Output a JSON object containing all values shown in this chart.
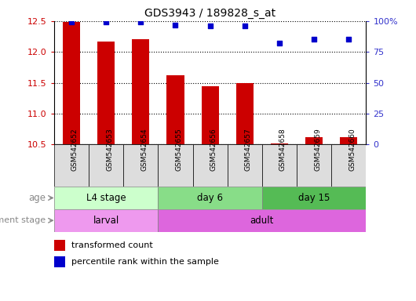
{
  "title": "GDS3943 / 189828_s_at",
  "samples": [
    "GSM542652",
    "GSM542653",
    "GSM542654",
    "GSM542655",
    "GSM542656",
    "GSM542657",
    "GSM542658",
    "GSM542659",
    "GSM542660"
  ],
  "transformed_count": [
    12.48,
    12.17,
    12.2,
    11.62,
    11.45,
    11.5,
    10.52,
    10.62,
    10.62
  ],
  "percentile_rank": [
    99,
    99,
    99,
    97,
    96,
    96,
    82,
    85,
    85
  ],
  "ylim_left": [
    10.5,
    12.5
  ],
  "ylim_right": [
    0,
    100
  ],
  "yticks_left": [
    10.5,
    11.0,
    11.5,
    12.0,
    12.5
  ],
  "yticks_right": [
    0,
    25,
    50,
    75,
    100
  ],
  "ytick_right_labels": [
    "0",
    "25",
    "50",
    "75",
    "100%"
  ],
  "age_groups": [
    {
      "label": "L4 stage",
      "start": 0,
      "end": 3,
      "color": "#ccffcc"
    },
    {
      "label": "day 6",
      "start": 3,
      "end": 6,
      "color": "#88dd88"
    },
    {
      "label": "day 15",
      "start": 6,
      "end": 9,
      "color": "#55bb55"
    }
  ],
  "dev_groups": [
    {
      "label": "larval",
      "start": 0,
      "end": 3,
      "color": "#ee99ee"
    },
    {
      "label": "adult",
      "start": 3,
      "end": 9,
      "color": "#dd66dd"
    }
  ],
  "bar_color": "#cc0000",
  "dot_color": "#0000cc",
  "bar_width": 0.5,
  "legend_bar_label": "transformed count",
  "legend_dot_label": "percentile rank within the sample",
  "age_label": "age",
  "dev_label": "development stage",
  "ylabel_left_color": "#cc0000",
  "ylabel_right_color": "#3333cc",
  "plot_bg": "#ffffff",
  "sample_cell_bg": "#dddddd",
  "spine_color": "#000000"
}
